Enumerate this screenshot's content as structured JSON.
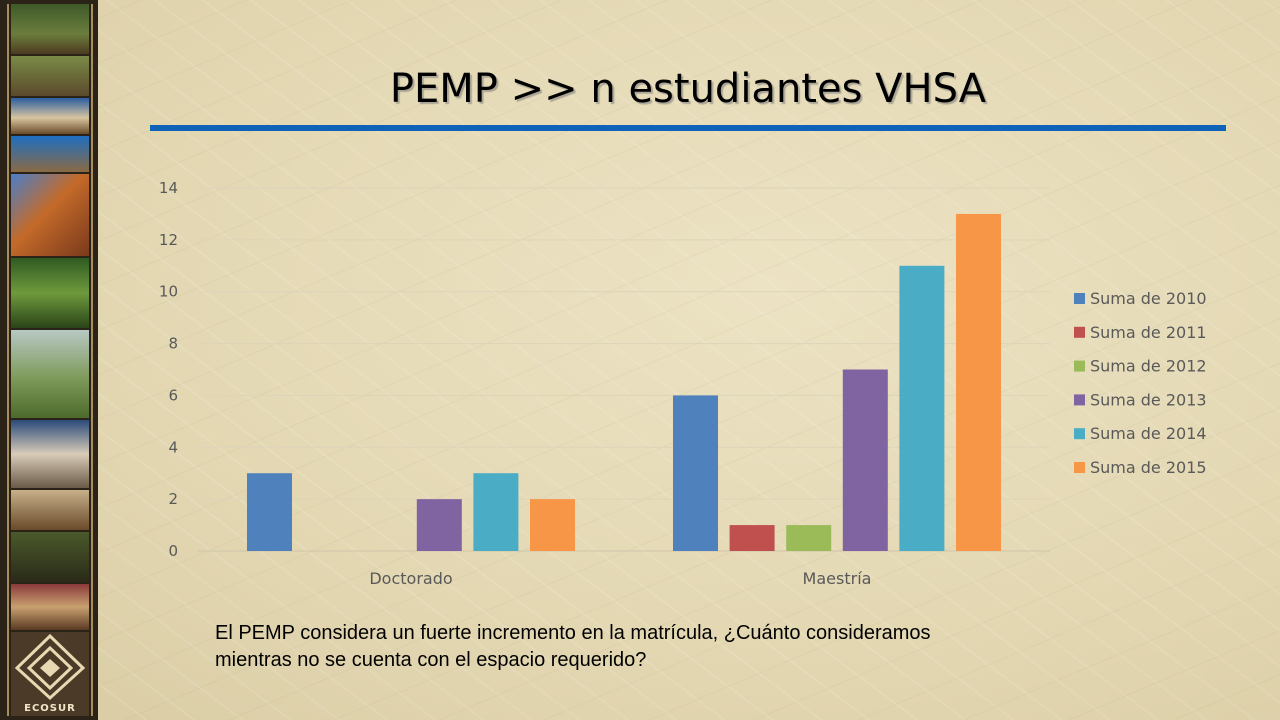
{
  "slide": {
    "title": "PEMP >> n estudiantes VHSA",
    "note": "El PEMP considera un fuerte incremento en la matrícula, ¿Cuánto consideramos mientras no se cuenta con el espacio requerido?",
    "sidebar_logo_text": "ECOSUR",
    "accent_color": "#0e63b8"
  },
  "chart_data": {
    "type": "bar",
    "categories": [
      "Doctorado",
      "Maestría"
    ],
    "series": [
      {
        "name": "Suma de 2010",
        "values": [
          3,
          6
        ],
        "color": "#4f81bd"
      },
      {
        "name": "Suma de 2011",
        "values": [
          0,
          1
        ],
        "color": "#c0504d"
      },
      {
        "name": "Suma de 2012",
        "values": [
          0,
          1
        ],
        "color": "#9bbb59"
      },
      {
        "name": "Suma de 2013",
        "values": [
          2,
          7
        ],
        "color": "#8064a2"
      },
      {
        "name": "Suma de 2014",
        "values": [
          3,
          11
        ],
        "color": "#4bacc6"
      },
      {
        "name": "Suma de 2015",
        "values": [
          2,
          13
        ],
        "color": "#f79646"
      }
    ],
    "ylim": [
      0,
      14
    ],
    "yticks": [
      0,
      2,
      4,
      6,
      8,
      10,
      12,
      14
    ],
    "grid": true,
    "legend_position": "right"
  }
}
